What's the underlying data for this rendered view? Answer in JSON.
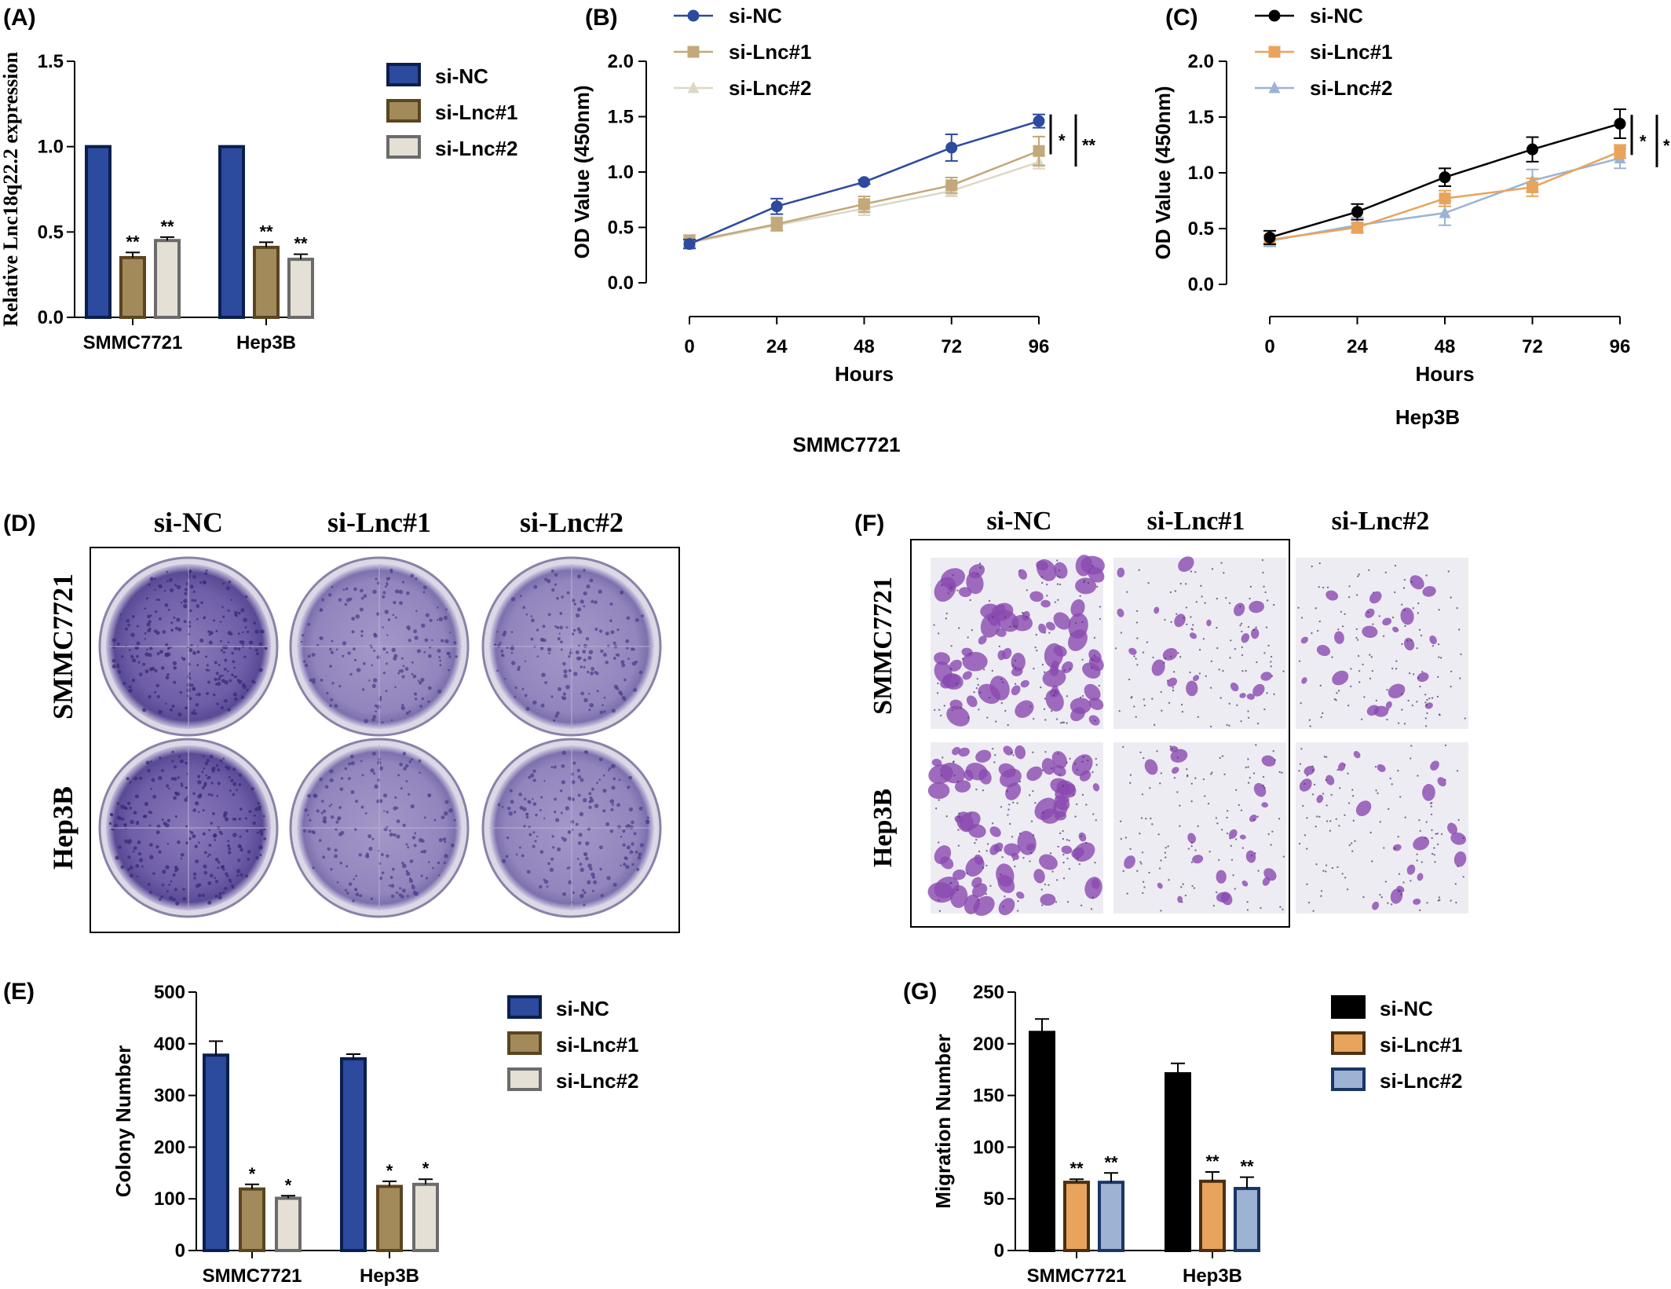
{
  "panel_labels": {
    "A": "(A)",
    "B": "(B)",
    "C": "(C)",
    "D": "(D)",
    "E": "(E)",
    "F": "(F)",
    "G": "(G)"
  },
  "colors": {
    "blue": "#2c4a9e",
    "tan": "#a38a5a",
    "light": "#e4e0d6",
    "black": "#000000",
    "orange": "#e8a45c",
    "lightblue": "#9cb3d4",
    "stain": "#5a3f8f",
    "migr": "#8a4ab0"
  },
  "chart_data": [
    {
      "id": "A",
      "type": "bar",
      "ylabel": "Relative Lnc18q22.2 expression",
      "categories": [
        "SMMC7721",
        "Hep3B"
      ],
      "ylim": [
        0,
        1.5
      ],
      "yticks": [
        "0.0",
        "0.5",
        "1.0",
        "1.5"
      ],
      "series": [
        {
          "name": "si-NC",
          "values": [
            1.0,
            1.0
          ],
          "err": [
            0,
            0
          ],
          "stars": [
            "",
            ""
          ]
        },
        {
          "name": "si-Lnc#1",
          "values": [
            0.35,
            0.41
          ],
          "err": [
            0.03,
            0.03
          ],
          "stars": [
            "**",
            "**"
          ]
        },
        {
          "name": "si-Lnc#2",
          "values": [
            0.45,
            0.34
          ],
          "err": [
            0.02,
            0.03
          ],
          "stars": [
            "**",
            "**"
          ]
        }
      ]
    },
    {
      "id": "B",
      "type": "line",
      "xlabel": "Hours",
      "ylabel": "OD Value (450nm)",
      "subtitle": "SMMC7721",
      "x": [
        0,
        24,
        48,
        72,
        96
      ],
      "xticks": [
        "0",
        "24",
        "48",
        "72",
        "96"
      ],
      "ylim": [
        0,
        2.0
      ],
      "yticks": [
        "0.0",
        "0.5",
        "1.0",
        "1.5",
        "2.0"
      ],
      "series": [
        {
          "name": "si-NC",
          "values": [
            0.35,
            0.69,
            0.91,
            1.22,
            1.46
          ],
          "err": [
            0.04,
            0.07,
            0.02,
            0.12,
            0.06
          ]
        },
        {
          "name": "si-Lnc#1",
          "values": [
            0.37,
            0.53,
            0.71,
            0.88,
            1.19
          ],
          "err": [
            0.06,
            0.06,
            0.07,
            0.07,
            0.13
          ]
        },
        {
          "name": "si-Lnc#2",
          "values": [
            0.36,
            0.52,
            0.67,
            0.83,
            1.09
          ],
          "err": [
            0.04,
            0.05,
            0.06,
            0.05,
            0.06
          ]
        }
      ],
      "sig": [
        "*",
        "**"
      ]
    },
    {
      "id": "C",
      "type": "line",
      "xlabel": "Hours",
      "ylabel": "OD Value (450nm)",
      "subtitle": "Hep3B",
      "x": [
        0,
        24,
        48,
        72,
        96
      ],
      "xticks": [
        "0",
        "24",
        "48",
        "72",
        "96"
      ],
      "ylim": [
        0,
        2.0
      ],
      "yticks": [
        "0.0",
        "0.5",
        "1.0",
        "1.5",
        "2.0"
      ],
      "series": [
        {
          "name": "si-NC",
          "values": [
            0.42,
            0.65,
            0.96,
            1.21,
            1.44
          ],
          "err": [
            0.06,
            0.07,
            0.08,
            0.11,
            0.13
          ]
        },
        {
          "name": "si-Lnc#1",
          "values": [
            0.4,
            0.51,
            0.77,
            0.87,
            1.19
          ],
          "err": [
            0.04,
            0.04,
            0.07,
            0.08,
            0.06
          ]
        },
        {
          "name": "si-Lnc#2",
          "values": [
            0.39,
            0.53,
            0.64,
            0.93,
            1.13
          ],
          "err": [
            0.05,
            0.07,
            0.11,
            0.1,
            0.09
          ]
        }
      ],
      "sig": [
        "*",
        "*"
      ]
    },
    {
      "id": "E",
      "type": "bar",
      "ylabel": "Colony Number",
      "categories": [
        "SMMC7721",
        "Hep3B"
      ],
      "ylim": [
        0,
        500
      ],
      "yticks": [
        "0",
        "100",
        "200",
        "300",
        "400",
        "500"
      ],
      "series": [
        {
          "name": "si-NC",
          "values": [
            378,
            371
          ],
          "err": [
            27,
            9
          ],
          "stars": [
            "",
            ""
          ]
        },
        {
          "name": "si-Lnc#1",
          "values": [
            119,
            124
          ],
          "err": [
            9,
            10
          ],
          "stars": [
            "*",
            "*"
          ]
        },
        {
          "name": "si-Lnc#2",
          "values": [
            101,
            128
          ],
          "err": [
            5,
            10
          ],
          "stars": [
            "*",
            "*"
          ]
        }
      ]
    },
    {
      "id": "G",
      "type": "bar",
      "ylabel": "Migration Number",
      "categories": [
        "SMMC7721",
        "Hep3B"
      ],
      "ylim": [
        0,
        250
      ],
      "yticks": [
        "0",
        "50",
        "100",
        "150",
        "200",
        "250"
      ],
      "series": [
        {
          "name": "si-NC",
          "values": [
            211,
            171
          ],
          "err": [
            13,
            10
          ],
          "stars": [
            "",
            ""
          ]
        },
        {
          "name": "si-Lnc#1",
          "values": [
            66,
            67
          ],
          "err": [
            3,
            9
          ],
          "stars": [
            "**",
            "**"
          ]
        },
        {
          "name": "si-Lnc#2",
          "values": [
            66,
            60
          ],
          "err": [
            9,
            11
          ],
          "stars": [
            "**",
            "**"
          ]
        }
      ]
    }
  ],
  "panel_D": {
    "columns": [
      "si-NC",
      "si-Lnc#1",
      "si-Lnc#2"
    ],
    "rows": [
      "SMMC7721",
      "Hep3B"
    ]
  },
  "panel_F": {
    "columns": [
      "si-NC",
      "si-Lnc#1",
      "si-Lnc#2"
    ],
    "rows": [
      "SMMC7721",
      "Hep3B"
    ]
  }
}
